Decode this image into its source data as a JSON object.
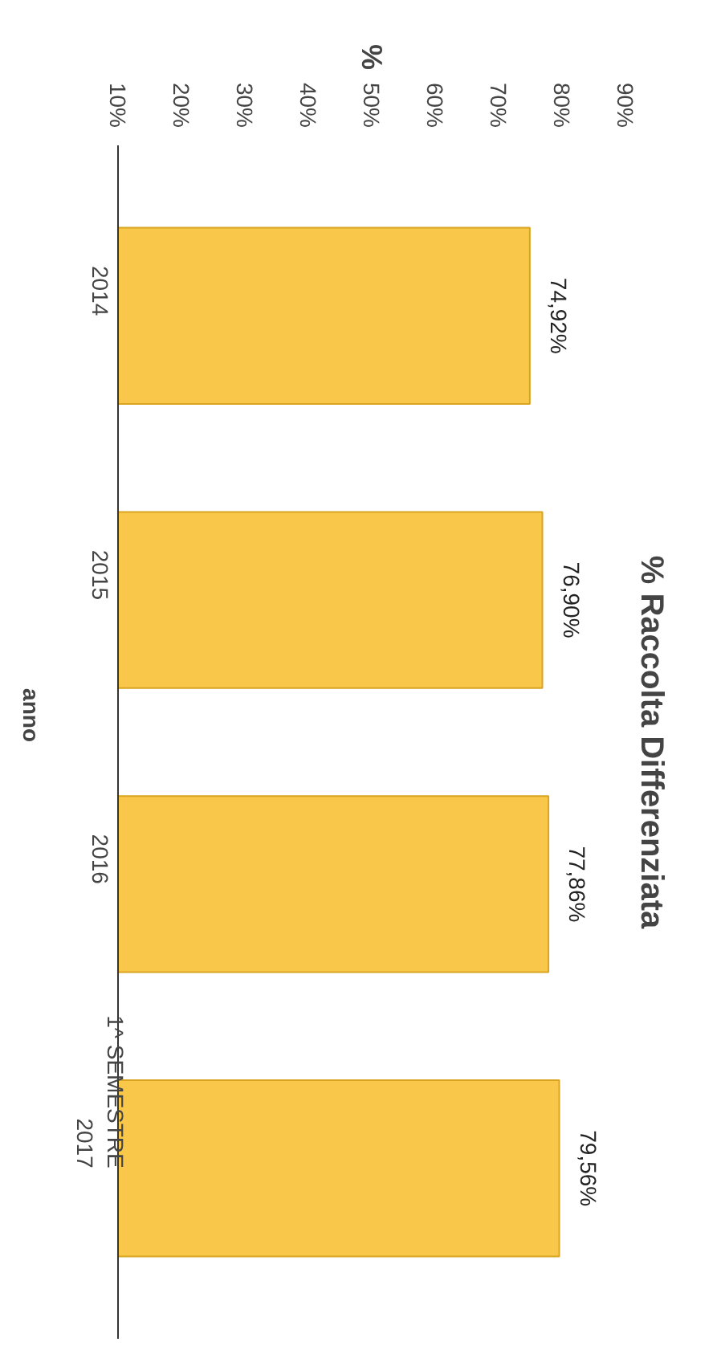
{
  "chart_data": {
    "type": "bar",
    "orientation": "horizontal",
    "title": "% Raccolta Differenziata",
    "x2label": "%",
    "ylabel": "anno",
    "categories": [
      "2014",
      "2015",
      "2016",
      "1^ SEMESTRE\n2017"
    ],
    "values": [
      74.92,
      76.9,
      77.86,
      79.56
    ],
    "value_labels": [
      "74,92%",
      "76,90%",
      "77,86%",
      "79,56%"
    ],
    "color": "#f9c84a",
    "xlim": [
      10,
      90
    ],
    "xticks": [
      {
        "value": 10,
        "label": "10%"
      },
      {
        "value": 20,
        "label": "20%"
      },
      {
        "value": 30,
        "label": "30%"
      },
      {
        "value": 40,
        "label": "40%"
      },
      {
        "value": 50,
        "label": "50%"
      },
      {
        "value": 60,
        "label": "60%"
      },
      {
        "value": 70,
        "label": "70%"
      },
      {
        "value": 80,
        "label": "80%"
      },
      {
        "value": 90,
        "label": "90%"
      }
    ],
    "grid": false
  }
}
